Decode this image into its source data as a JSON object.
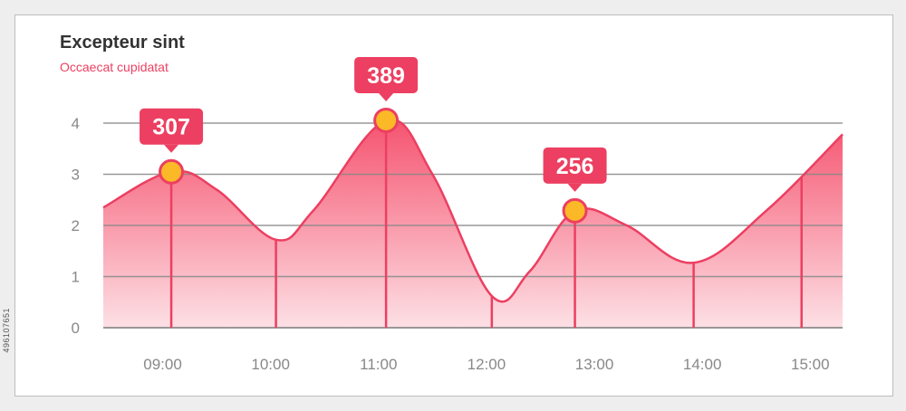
{
  "header": {
    "title": "Excepteur sint",
    "subtitle": "Occaecat cupidatat"
  },
  "stock_id": "496107651",
  "colors": {
    "accent": "#ec3f61",
    "fill_top": "#f5536f",
    "fill_bottom": "#fde0e5",
    "marker": "#fbb827",
    "grid": "#888888",
    "text": "#333333",
    "tick": "#888888"
  },
  "chart_data": {
    "type": "area",
    "title": "Excepteur sint",
    "subtitle": "Occaecat cupidatat",
    "y_ticks": [
      0,
      1,
      2,
      3,
      4
    ],
    "ylim": [
      0,
      4
    ],
    "x_ticks": [
      "09:00",
      "10:00",
      "11:00",
      "12:00",
      "13:00",
      "14:00",
      "15:00"
    ],
    "xlim": [
      8.45,
      15.3
    ],
    "grid": true,
    "series": [
      {
        "points": [
          {
            "x": 8.45,
            "y": 2.35
          },
          {
            "x": 9.08,
            "y": 3.05
          },
          {
            "x": 9.5,
            "y": 2.7
          },
          {
            "x": 10.05,
            "y": 1.72
          },
          {
            "x": 10.4,
            "y": 2.3
          },
          {
            "x": 11.07,
            "y": 4.05
          },
          {
            "x": 11.5,
            "y": 3.0
          },
          {
            "x": 12.05,
            "y": 0.62
          },
          {
            "x": 12.4,
            "y": 1.1
          },
          {
            "x": 12.82,
            "y": 2.28
          },
          {
            "x": 13.3,
            "y": 2.0
          },
          {
            "x": 13.92,
            "y": 1.27
          },
          {
            "x": 14.6,
            "y": 2.3
          },
          {
            "x": 15.3,
            "y": 3.78
          }
        ]
      }
    ],
    "drop_lines_x": [
      9.08,
      10.05,
      11.07,
      12.05,
      12.82,
      13.92,
      14.92
    ],
    "callouts": [
      {
        "x": 9.08,
        "y": 3.05,
        "label": "307"
      },
      {
        "x": 11.07,
        "y": 4.05,
        "label": "389"
      },
      {
        "x": 12.82,
        "y": 2.28,
        "label": "256"
      }
    ]
  }
}
